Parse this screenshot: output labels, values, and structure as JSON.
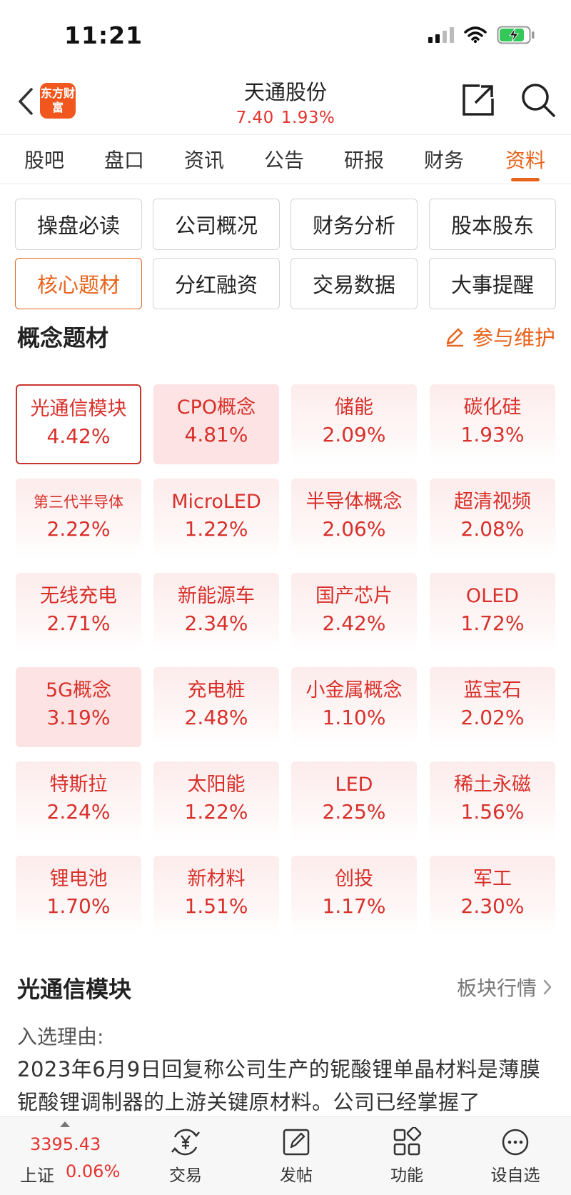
{
  "status_bar": {
    "time": "11:21"
  },
  "header": {
    "logo_text": "东方财富",
    "stock_name": "天通股份",
    "price": "7.40",
    "change_pct": "1.93%"
  },
  "tabs": [
    {
      "label": "股吧",
      "active": false
    },
    {
      "label": "盘口",
      "active": false
    },
    {
      "label": "资讯",
      "active": false
    },
    {
      "label": "公告",
      "active": false
    },
    {
      "label": "研报",
      "active": false
    },
    {
      "label": "财务",
      "active": false
    },
    {
      "label": "资料",
      "active": true
    }
  ],
  "sections": [
    {
      "label": "操盘必读"
    },
    {
      "label": "公司概况"
    },
    {
      "label": "财务分析"
    },
    {
      "label": "股本股东"
    },
    {
      "label": "核心题材"
    },
    {
      "label": "分红融资"
    },
    {
      "label": "交易数据"
    },
    {
      "label": "大事提醒"
    }
  ],
  "active_section": "核心题材",
  "concept": {
    "title": "概念题材",
    "maintain_label": "参与维护",
    "items": [
      {
        "name": "光通信模块",
        "pct": "4.42%"
      },
      {
        "name": "CPO概念",
        "pct": "4.81%"
      },
      {
        "name": "储能",
        "pct": "2.09%"
      },
      {
        "name": "碳化硅",
        "pct": "1.93%"
      },
      {
        "name": "第三代半导体",
        "pct": "2.22%"
      },
      {
        "name": "MicroLED",
        "pct": "1.22%"
      },
      {
        "name": "半导体概念",
        "pct": "2.06%"
      },
      {
        "name": "超清视频",
        "pct": "2.08%"
      },
      {
        "name": "无线充电",
        "pct": "2.71%"
      },
      {
        "name": "新能源车",
        "pct": "2.34%"
      },
      {
        "name": "国产芯片",
        "pct": "2.42%"
      },
      {
        "name": "OLED",
        "pct": "1.72%"
      },
      {
        "name": "5G概念",
        "pct": "3.19%"
      },
      {
        "name": "充电桩",
        "pct": "2.48%"
      },
      {
        "name": "小金属概念",
        "pct": "1.10%"
      },
      {
        "name": "蓝宝石",
        "pct": "2.02%"
      },
      {
        "name": "特斯拉",
        "pct": "2.24%"
      },
      {
        "name": "太阳能",
        "pct": "1.22%"
      },
      {
        "name": "LED",
        "pct": "2.25%"
      },
      {
        "name": "稀土永磁",
        "pct": "1.56%"
      },
      {
        "name": "锂电池",
        "pct": "1.70%"
      },
      {
        "name": "新材料",
        "pct": "1.51%"
      },
      {
        "name": "创投",
        "pct": "1.17%"
      },
      {
        "name": "军工",
        "pct": "2.30%"
      }
    ]
  },
  "detail": {
    "title": "光通信模块",
    "link_label": "板块行情",
    "reason_label": "入选理由:",
    "reason_text": "2023年6月9日回复称公司生产的铌酸锂单晶材料是薄膜铌酸锂调制器的上游关键原材料。公司已经掌握了"
  },
  "bottom_bar": {
    "index_value": "3395.43",
    "index_name": "上证",
    "index_change": "0.06%",
    "nav": [
      {
        "label": "交易",
        "icon": "yuan-exchange-icon"
      },
      {
        "label": "发帖",
        "icon": "edit-post-icon"
      },
      {
        "label": "功能",
        "icon": "grid-apps-icon"
      },
      {
        "label": "设自选",
        "icon": "more-dots-icon"
      }
    ]
  },
  "colors": {
    "accent": "#e8641c",
    "rise": "#e5322d",
    "tile_text": "#d8302a"
  }
}
